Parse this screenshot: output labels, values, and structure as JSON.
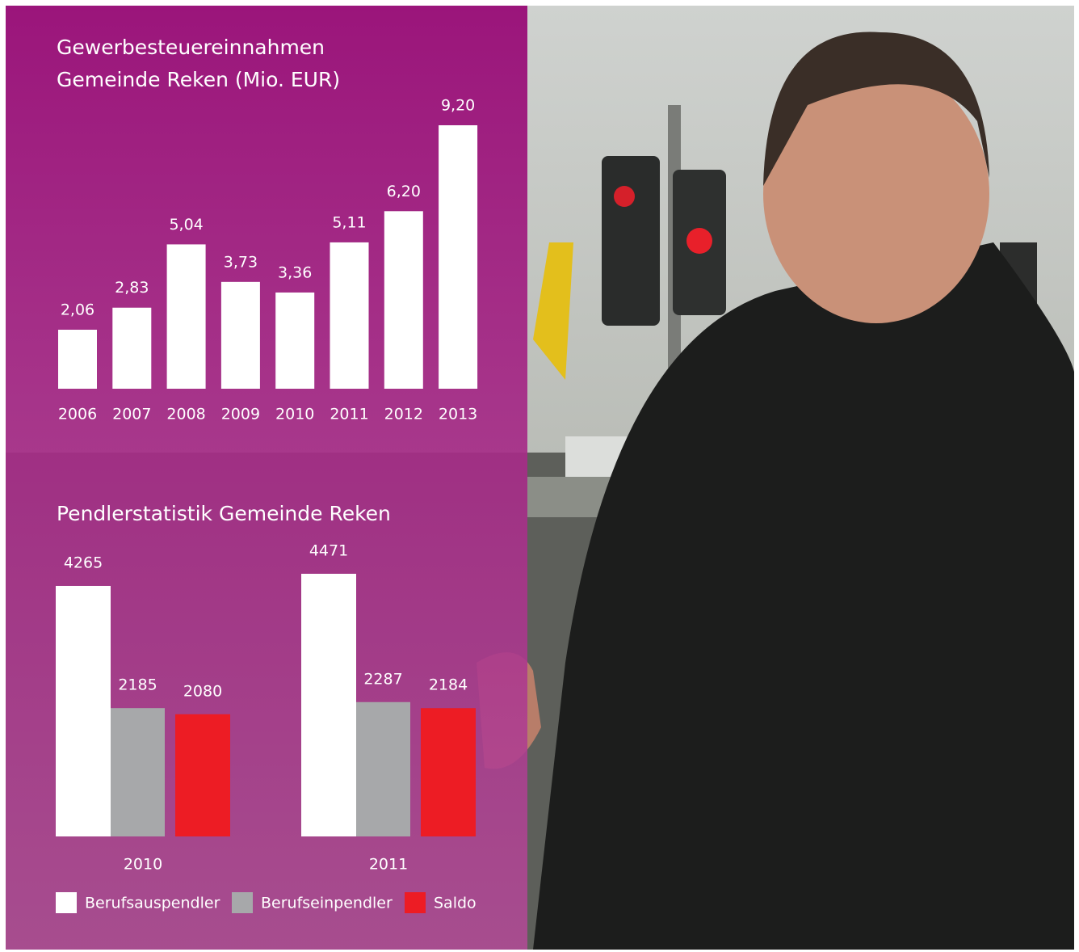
{
  "chart_data": [
    {
      "type": "bar",
      "title": [
        "Gewerbesteuereinnahmen",
        "Gemeinde Reken (Mio. EUR)"
      ],
      "categories": [
        "2006",
        "2007",
        "2008",
        "2009",
        "2010",
        "2011",
        "2012",
        "2013"
      ],
      "values": [
        2.06,
        2.83,
        5.04,
        3.73,
        3.36,
        5.11,
        6.2,
        9.2
      ],
      "value_labels": [
        "2,06",
        "2,83",
        "5,04",
        "3,73",
        "3,36",
        "5,11",
        "6,20",
        "9,20"
      ],
      "color": "#ffffff"
    },
    {
      "type": "grouped-bar",
      "title": "Pendlerstatistik Gemeinde Reken",
      "categories": [
        "2010",
        "2011"
      ],
      "series": [
        {
          "name": "Berufsauspendler",
          "color": "#ffffff",
          "values": [
            4265,
            4471
          ]
        },
        {
          "name": "Berufseinpendler",
          "color": "#a7a8aa",
          "values": [
            2185,
            2287
          ]
        },
        {
          "name": "Saldo",
          "color": "#ed1c24",
          "values": [
            2080,
            2184
          ]
        }
      ]
    }
  ]
}
